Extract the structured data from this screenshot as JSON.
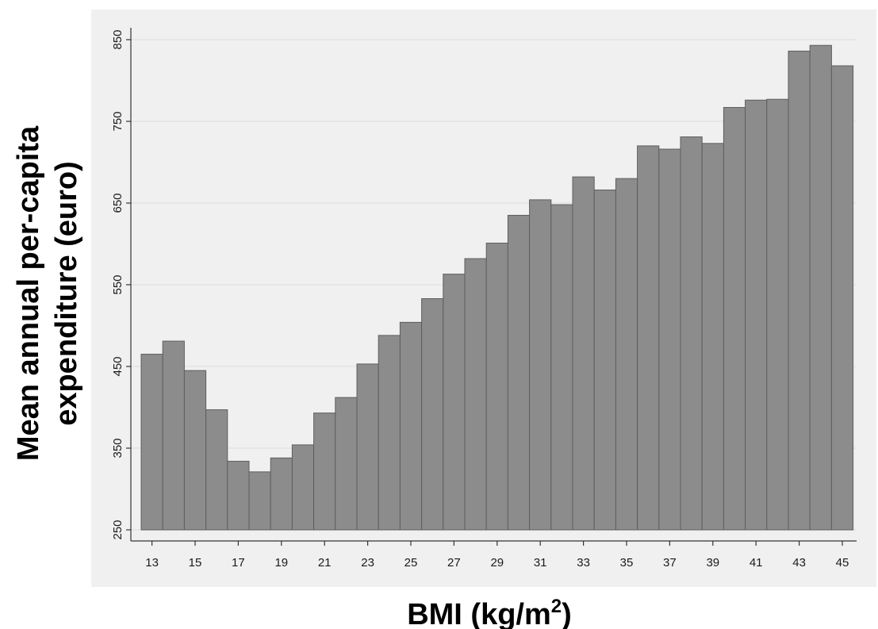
{
  "chart_data": {
    "type": "bar",
    "title": "",
    "xlabel": "BMI (kg/m",
    "xlabel_superscript": "2",
    "xlabel_suffix": ")",
    "ylabel_line1": "Mean annual  per-capita",
    "ylabel_line2": "expenditure (euro)",
    "x": [
      13,
      14,
      15,
      16,
      17,
      18,
      19,
      20,
      21,
      22,
      23,
      24,
      25,
      26,
      27,
      28,
      29,
      30,
      31,
      32,
      33,
      34,
      35,
      36,
      37,
      38,
      39,
      40,
      41,
      42,
      43,
      44,
      45
    ],
    "values": [
      465,
      481,
      445,
      397,
      334,
      321,
      338,
      354,
      393,
      412,
      453,
      488,
      504,
      533,
      563,
      582,
      601,
      635,
      654,
      648,
      682,
      666,
      680,
      720,
      716,
      731,
      723,
      767,
      776,
      777,
      836,
      843,
      818
    ],
    "xticks": [
      13,
      15,
      17,
      19,
      21,
      23,
      25,
      27,
      29,
      31,
      33,
      35,
      37,
      39,
      41,
      43,
      45
    ],
    "yticks": [
      250,
      350,
      450,
      550,
      650,
      750,
      850
    ],
    "ylim": [
      250,
      850
    ],
    "grid": true,
    "legend": "none",
    "colors": {
      "bar_fill": "#8c8c8c",
      "bar_edge": "#5e5e5e",
      "plot_background": "#f0f0f0",
      "grid": "#e3e3e3",
      "axis": "#333333"
    }
  }
}
